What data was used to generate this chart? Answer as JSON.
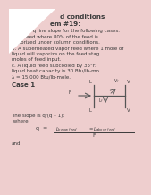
{
  "background_color": "#eecece",
  "title_line1": "d conditions",
  "title_line2": "em #19:",
  "subtitle": "Find the q line slope for the following cases.",
  "case_a1": "a.  A feed where 80% of the feed is",
  "case_a2": "vaporized under column conditions.",
  "case_b1": "b. A superheated vapor feed where 1 mole of",
  "case_b2": "liquid will vaporize on the feed stag",
  "case_b3": "moles of feed input.",
  "case_c1": "c. A liquid feed subcooled by 35°F.",
  "case_c2": "liquid heat capacity is 30 Btu/lb-mo",
  "case_c3": "λ = 15,000 Btu/lb-mole.",
  "case1_label": "Case 1",
  "slope_text": "The slope is q/(q – 1);",
  "where_text": " where",
  "and_text": "and",
  "text_color": "#3a3a3a",
  "diagram_color": "#555555",
  "fontsize_title": 5.2,
  "fontsize_body": 4.0,
  "fontsize_bold": 5.0
}
